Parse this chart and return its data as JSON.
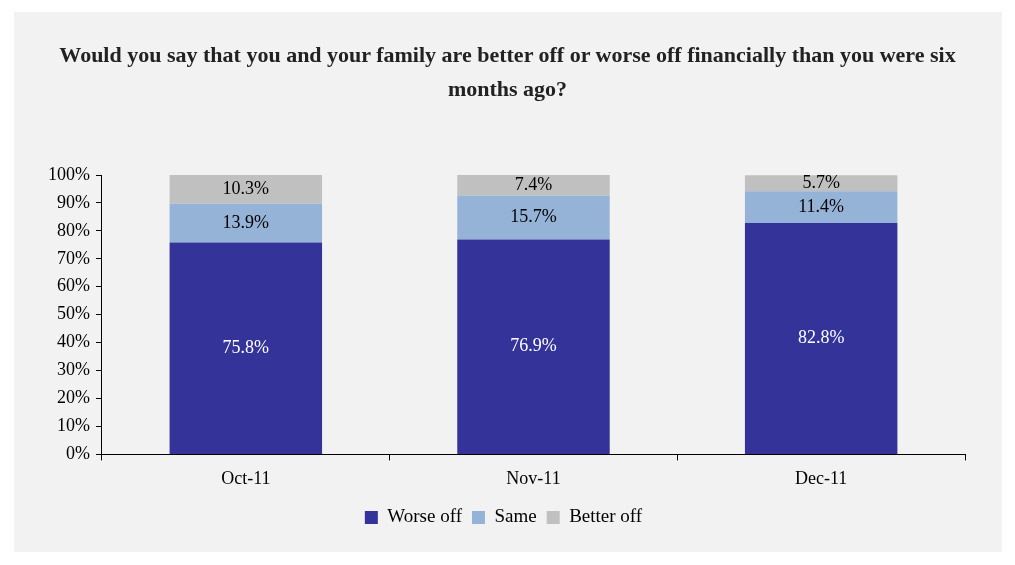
{
  "chart_data": {
    "type": "bar",
    "title": "Would you say that you and your family are better off or worse off financially than you were six months ago?",
    "categories": [
      "Oct-11",
      "Nov-11",
      "Dec-11"
    ],
    "stacked": true,
    "series": [
      {
        "name": "Worse off",
        "color": "#333399",
        "values": [
          75.8,
          76.9,
          82.8
        ],
        "value_labels": [
          "75.8%",
          "76.9%",
          "82.8%"
        ]
      },
      {
        "name": "Same",
        "color": "#95b3d7",
        "values": [
          13.9,
          15.7,
          11.4
        ],
        "value_labels": [
          "13.9%",
          "15.7%",
          "11.4%"
        ]
      },
      {
        "name": "Better off",
        "color": "#c0c0c0",
        "values": [
          10.3,
          7.4,
          5.7
        ],
        "value_labels": [
          "10.3%",
          "7.4%",
          "5.7%"
        ]
      }
    ],
    "ylim": [
      0,
      100
    ],
    "yticks": [
      {
        "value": 0,
        "label": "0%"
      },
      {
        "value": 10,
        "label": "10%"
      },
      {
        "value": 20,
        "label": "20%"
      },
      {
        "value": 30,
        "label": "30%"
      },
      {
        "value": 40,
        "label": "40%"
      },
      {
        "value": 50,
        "label": "50%"
      },
      {
        "value": 60,
        "label": "60%"
      },
      {
        "value": 70,
        "label": "70%"
      },
      {
        "value": 80,
        "label": "80%"
      },
      {
        "value": 90,
        "label": "90%"
      },
      {
        "value": 100,
        "label": "100%"
      }
    ],
    "grid": false,
    "legend": "bottom"
  }
}
